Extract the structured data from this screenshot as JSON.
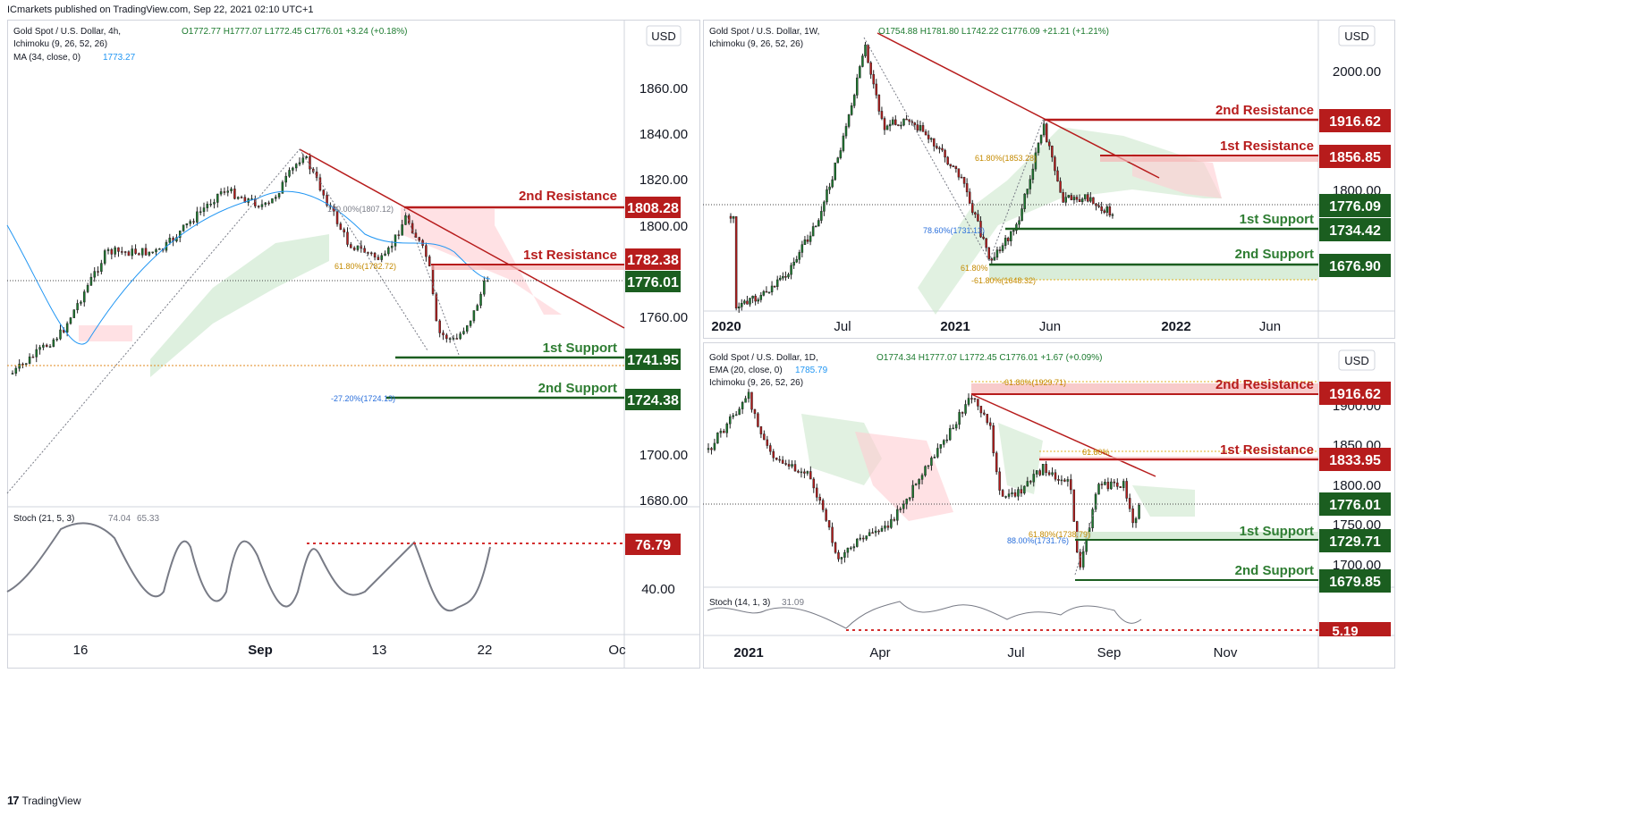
{
  "header": {
    "publisher": "ICmarkets published on TradingView.com, Sep 22, 2021 02:10 UTC+1"
  },
  "footer": {
    "logo": "17",
    "brand": "TradingView"
  },
  "chart_data": [
    {
      "type": "candlestick",
      "panel": "left",
      "symbol": "Gold Spot / U.S. Dollar, 4h,",
      "ohlc": "O1772.77  H1777.07  L1772.45  C1776.01  +3.24 (+0.18%)",
      "indicators": [
        "Ichimoku (9, 26, 52, 26)",
        "MA (34, close, 0)"
      ],
      "ma_value": "1773.27",
      "currency": "USD",
      "y_ticks": [
        "1860.00",
        "1840.00",
        "1820.00",
        "1800.00",
        "1760.00",
        "1700.00",
        "1680.00"
      ],
      "x_ticks": [
        "16",
        "Sep",
        "13",
        "22",
        "Oc"
      ],
      "levels": [
        {
          "name": "2nd Resistance",
          "value": "1808.28",
          "kind": "resistance"
        },
        {
          "name": "1st Resistance",
          "value": "1782.38",
          "kind": "resistance"
        },
        {
          "name": "current",
          "value": "1776.01",
          "kind": "price"
        },
        {
          "name": "1st Support",
          "value": "1741.95",
          "kind": "support"
        },
        {
          "name": "2nd Support",
          "value": "1724.38",
          "kind": "support"
        }
      ],
      "fib_labels": [
        "100.00%(1807.12)",
        "61.80%(1782.72)",
        "-27.20%(1724.13)"
      ],
      "oscillator": {
        "title": "Stoch (21, 5, 3)",
        "values": [
          "74.04",
          "65.33"
        ],
        "level": "76.79",
        "tick": "40.00"
      },
      "colors": {
        "resistance": "#b71c1c",
        "support": "#1b5e20",
        "price": "#1b5e20",
        "ma": "#2196f3"
      }
    },
    {
      "type": "candlestick",
      "panel": "top-right",
      "symbol": "Gold Spot / U.S. Dollar, 1W,",
      "ohlc": "O1754.88  H1781.80  L1742.22  C1776.09  +21.21 (+1.21%)",
      "indicators": [
        "Ichimoku (9, 26, 52, 26)"
      ],
      "currency": "USD",
      "y_ticks": [
        "2000.00",
        "1800.00"
      ],
      "x_ticks": [
        "2020",
        "Jul",
        "2021",
        "Jun",
        "2022",
        "Jun"
      ],
      "levels": [
        {
          "name": "2nd Resistance",
          "value": "1916.62",
          "kind": "resistance"
        },
        {
          "name": "1st Resistance",
          "value": "1856.85",
          "kind": "resistance"
        },
        {
          "name": "current",
          "value": "1776.09",
          "kind": "price"
        },
        {
          "name": "1st Support",
          "value": "1734.42",
          "kind": "support"
        },
        {
          "name": "2nd Support",
          "value": "1676.90",
          "kind": "support"
        }
      ],
      "fib_labels": [
        "61.80%(1853.28)",
        "78.60%(1731.13)",
        "61.80%",
        "-61.80%(1648.32)"
      ]
    },
    {
      "type": "candlestick",
      "panel": "bottom-right",
      "symbol": "Gold Spot / U.S. Dollar, 1D,",
      "ohlc": "O1774.34  H1777.07  L1772.45  C1776.01  +1.67 (+0.09%)",
      "indicators": [
        "EMA (20, close, 0)",
        "Ichimoku (9, 26, 52, 26)"
      ],
      "ema_value": "1785.79",
      "currency": "USD",
      "y_ticks": [
        "1900.00",
        "1850.00",
        "1800.00",
        "1750.00",
        "1700.00"
      ],
      "x_ticks": [
        "2021",
        "Apr",
        "Jul",
        "Sep",
        "Nov"
      ],
      "levels": [
        {
          "name": "2nd Resistance",
          "value": "1916.62",
          "kind": "resistance"
        },
        {
          "name": "1st Resistance",
          "value": "1833.95",
          "kind": "resistance"
        },
        {
          "name": "current",
          "value": "1776.01",
          "kind": "price"
        },
        {
          "name": "1st Support",
          "value": "1729.71",
          "kind": "support"
        },
        {
          "name": "2nd Support",
          "value": "1679.85",
          "kind": "support"
        }
      ],
      "fib_labels": [
        "-61.80%(1929.71)",
        "61.80%",
        "61.80%(1738.79)",
        "88.00%(1731.76)"
      ],
      "oscillator": {
        "title": "Stoch (14, 1, 3)",
        "values": [
          "31.09"
        ],
        "level": "5.19"
      }
    }
  ]
}
